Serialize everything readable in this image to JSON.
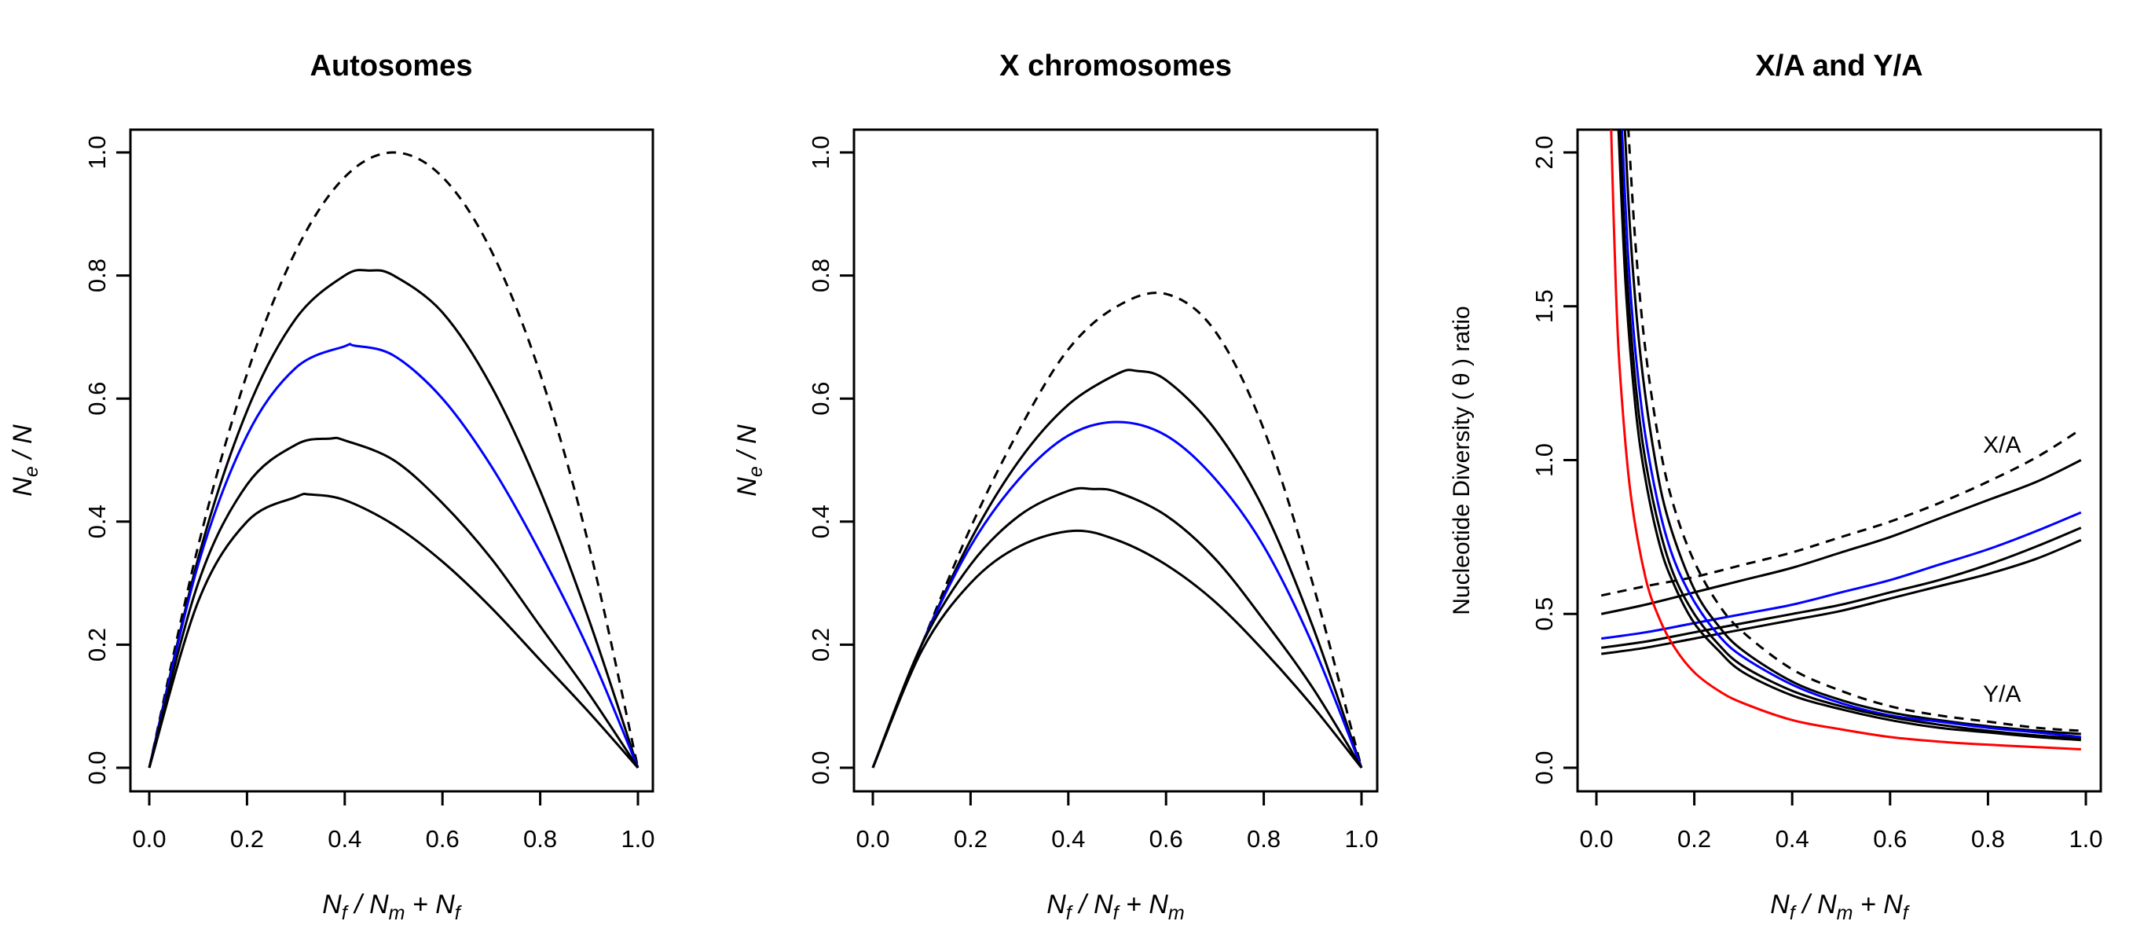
{
  "chart_data": [
    {
      "type": "line",
      "title": "Autosomes",
      "xlabel": "N_f / N_m + N_f",
      "ylabel": "N_e / N",
      "xlim": [
        0,
        1
      ],
      "ylim": [
        0,
        1
      ],
      "xticks": [
        "0.0",
        "0.2",
        "0.4",
        "0.6",
        "0.8",
        "1.0"
      ],
      "yticks": [
        "0.0",
        "0.2",
        "0.4",
        "0.6",
        "0.8",
        "1.0"
      ],
      "grid": false,
      "series": [
        {
          "color": "#000000",
          "dashed": true,
          "x": [
            0,
            0.1,
            0.2,
            0.3,
            0.4,
            0.5,
            0.6,
            0.7,
            0.8,
            0.9,
            1.0
          ],
          "y": [
            0,
            0.36,
            0.64,
            0.84,
            0.96,
            1.0,
            0.96,
            0.84,
            0.64,
            0.36,
            0
          ]
        },
        {
          "color": "#000000",
          "dashed": false,
          "x": [
            0,
            0.1,
            0.2,
            0.3,
            0.4,
            0.45,
            0.5,
            0.6,
            0.7,
            0.8,
            0.9,
            1.0
          ],
          "y": [
            0,
            0.34,
            0.58,
            0.73,
            0.8,
            0.808,
            0.8,
            0.74,
            0.62,
            0.45,
            0.24,
            0
          ]
        },
        {
          "color": "#0000ff",
          "dashed": false,
          "x": [
            0,
            0.1,
            0.2,
            0.3,
            0.4,
            0.42,
            0.5,
            0.6,
            0.7,
            0.8,
            0.9,
            1.0
          ],
          "y": [
            0,
            0.33,
            0.54,
            0.65,
            0.685,
            0.686,
            0.67,
            0.6,
            0.49,
            0.35,
            0.19,
            0
          ]
        },
        {
          "color": "#000000",
          "dashed": false,
          "x": [
            0,
            0.1,
            0.2,
            0.3,
            0.37,
            0.4,
            0.5,
            0.6,
            0.7,
            0.8,
            0.9,
            1.0
          ],
          "y": [
            0,
            0.3,
            0.46,
            0.525,
            0.535,
            0.532,
            0.5,
            0.43,
            0.34,
            0.23,
            0.12,
            0
          ]
        },
        {
          "color": "#000000",
          "dashed": false,
          "x": [
            0,
            0.1,
            0.2,
            0.3,
            0.33,
            0.4,
            0.5,
            0.6,
            0.7,
            0.8,
            0.9,
            1.0
          ],
          "y": [
            0,
            0.27,
            0.4,
            0.44,
            0.444,
            0.435,
            0.395,
            0.335,
            0.26,
            0.175,
            0.09,
            0
          ]
        }
      ]
    },
    {
      "type": "line",
      "title": "X chromosomes",
      "xlabel": "N_f / N_f + N_m",
      "ylabel": "N_e / N",
      "xlim": [
        0,
        1
      ],
      "ylim": [
        0,
        1
      ],
      "xticks": [
        "0.0",
        "0.2",
        "0.4",
        "0.6",
        "0.8",
        "1.0"
      ],
      "yticks": [
        "0.0",
        "0.2",
        "0.4",
        "0.6",
        "0.8",
        "1.0"
      ],
      "grid": false,
      "series": [
        {
          "color": "#000000",
          "dashed": true,
          "x": [
            0,
            0.1,
            0.2,
            0.3,
            0.4,
            0.5,
            0.6,
            0.7,
            0.8,
            0.9,
            1.0
          ],
          "y": [
            0,
            0.2,
            0.39,
            0.55,
            0.68,
            0.75,
            0.77,
            0.71,
            0.55,
            0.3,
            0
          ]
        },
        {
          "color": "#000000",
          "dashed": false,
          "x": [
            0,
            0.1,
            0.2,
            0.3,
            0.4,
            0.5,
            0.54,
            0.6,
            0.7,
            0.8,
            0.9,
            1.0
          ],
          "y": [
            0,
            0.2,
            0.37,
            0.5,
            0.59,
            0.64,
            0.645,
            0.63,
            0.55,
            0.42,
            0.23,
            0
          ]
        },
        {
          "color": "#0000ff",
          "dashed": false,
          "x": [
            0,
            0.1,
            0.2,
            0.3,
            0.4,
            0.5,
            0.6,
            0.7,
            0.8,
            0.9,
            1.0
          ],
          "y": [
            0,
            0.2,
            0.36,
            0.47,
            0.54,
            0.562,
            0.54,
            0.47,
            0.36,
            0.2,
            0
          ]
        },
        {
          "color": "#000000",
          "dashed": false,
          "x": [
            0,
            0.1,
            0.2,
            0.3,
            0.4,
            0.45,
            0.5,
            0.6,
            0.7,
            0.8,
            0.9,
            1.0
          ],
          "y": [
            0,
            0.2,
            0.33,
            0.41,
            0.45,
            0.453,
            0.448,
            0.41,
            0.34,
            0.24,
            0.13,
            0
          ]
        },
        {
          "color": "#000000",
          "dashed": false,
          "x": [
            0,
            0.1,
            0.2,
            0.3,
            0.41,
            0.5,
            0.6,
            0.7,
            0.8,
            0.9,
            1.0
          ],
          "y": [
            0,
            0.19,
            0.3,
            0.36,
            0.385,
            0.37,
            0.33,
            0.27,
            0.19,
            0.1,
            0
          ]
        }
      ]
    },
    {
      "type": "line",
      "title": "X/A and Y/A",
      "xlabel": "N_f / N_m + N_f",
      "ylabel": "Nucleotide Diversity ( θ ) ratio",
      "xlim": [
        0,
        1
      ],
      "ylim": [
        0,
        2
      ],
      "xticks": [
        "0.0",
        "0.2",
        "0.4",
        "0.6",
        "0.8",
        "1.0"
      ],
      "yticks": [
        "0.0",
        "0.5",
        "1.0",
        "1.5",
        "2.0"
      ],
      "grid": false,
      "annotations": [
        {
          "text": "X/A",
          "x": 0.79,
          "y": 1.05
        },
        {
          "text": "Y/A",
          "x": 0.79,
          "y": 0.24
        }
      ],
      "series": [
        {
          "color": "#000000",
          "dashed": true,
          "x": [
            0.01,
            0.1,
            0.2,
            0.3,
            0.4,
            0.5,
            0.6,
            0.7,
            0.8,
            0.9,
            0.99
          ],
          "y": [
            0.56,
            0.59,
            0.62,
            0.66,
            0.7,
            0.75,
            0.8,
            0.86,
            0.93,
            1.01,
            1.1
          ]
        },
        {
          "color": "#000000",
          "dashed": false,
          "x": [
            0.01,
            0.1,
            0.2,
            0.3,
            0.4,
            0.5,
            0.6,
            0.7,
            0.8,
            0.9,
            0.99
          ],
          "y": [
            0.5,
            0.53,
            0.57,
            0.61,
            0.65,
            0.7,
            0.75,
            0.81,
            0.87,
            0.93,
            1.0
          ]
        },
        {
          "color": "#0000ff",
          "dashed": false,
          "x": [
            0.01,
            0.1,
            0.2,
            0.3,
            0.4,
            0.5,
            0.6,
            0.7,
            0.8,
            0.9,
            0.99
          ],
          "y": [
            0.42,
            0.44,
            0.47,
            0.5,
            0.53,
            0.57,
            0.61,
            0.66,
            0.71,
            0.77,
            0.83
          ]
        },
        {
          "color": "#000000",
          "dashed": false,
          "x": [
            0.01,
            0.1,
            0.2,
            0.3,
            0.4,
            0.5,
            0.6,
            0.7,
            0.8,
            0.9,
            0.99
          ],
          "y": [
            0.39,
            0.41,
            0.44,
            0.47,
            0.5,
            0.53,
            0.57,
            0.61,
            0.66,
            0.72,
            0.78
          ]
        },
        {
          "color": "#000000",
          "dashed": false,
          "x": [
            0.01,
            0.1,
            0.2,
            0.3,
            0.4,
            0.5,
            0.6,
            0.7,
            0.8,
            0.9,
            0.99
          ],
          "y": [
            0.37,
            0.39,
            0.42,
            0.45,
            0.48,
            0.51,
            0.55,
            0.59,
            0.63,
            0.68,
            0.74
          ]
        },
        {
          "color": "#000000",
          "dashed": true,
          "x": [
            0.065,
            0.08,
            0.1,
            0.13,
            0.16,
            0.2,
            0.25,
            0.3,
            0.4,
            0.5,
            0.6,
            0.7,
            0.8,
            0.9,
            0.99
          ],
          "y": [
            2.08,
            1.7,
            1.36,
            1.04,
            0.84,
            0.67,
            0.53,
            0.44,
            0.32,
            0.25,
            0.2,
            0.17,
            0.15,
            0.13,
            0.12
          ]
        },
        {
          "color": "#000000",
          "dashed": false,
          "x": [
            0.058,
            0.07,
            0.09,
            0.12,
            0.15,
            0.2,
            0.25,
            0.3,
            0.4,
            0.5,
            0.6,
            0.7,
            0.8,
            0.9,
            0.99
          ],
          "y": [
            2.08,
            1.72,
            1.34,
            1.0,
            0.79,
            0.58,
            0.46,
            0.38,
            0.28,
            0.22,
            0.18,
            0.155,
            0.135,
            0.12,
            0.11
          ]
        },
        {
          "color": "#0000ff",
          "dashed": false,
          "x": [
            0.052,
            0.065,
            0.08,
            0.1,
            0.13,
            0.16,
            0.2,
            0.25,
            0.3,
            0.4,
            0.5,
            0.6,
            0.7,
            0.8,
            0.9,
            0.99
          ],
          "y": [
            2.08,
            1.66,
            1.35,
            1.08,
            0.83,
            0.67,
            0.54,
            0.43,
            0.36,
            0.27,
            0.21,
            0.17,
            0.15,
            0.13,
            0.115,
            0.1
          ]
        },
        {
          "color": "#000000",
          "dashed": false,
          "x": [
            0.048,
            0.06,
            0.08,
            0.1,
            0.13,
            0.16,
            0.2,
            0.25,
            0.3,
            0.4,
            0.5,
            0.6,
            0.7,
            0.8,
            0.9,
            0.99
          ],
          "y": [
            2.08,
            1.66,
            1.25,
            1.0,
            0.77,
            0.62,
            0.5,
            0.4,
            0.33,
            0.25,
            0.2,
            0.165,
            0.14,
            0.12,
            0.105,
            0.095
          ]
        },
        {
          "color": "#000000",
          "dashed": false,
          "x": [
            0.045,
            0.06,
            0.08,
            0.1,
            0.13,
            0.16,
            0.2,
            0.25,
            0.3,
            0.4,
            0.5,
            0.6,
            0.7,
            0.8,
            0.9,
            0.99
          ],
          "y": [
            2.08,
            1.56,
            1.17,
            0.94,
            0.72,
            0.59,
            0.47,
            0.38,
            0.31,
            0.235,
            0.19,
            0.155,
            0.13,
            0.115,
            0.1,
            0.09
          ]
        },
        {
          "color": "#ff0000",
          "dashed": false,
          "x": [
            0.03,
            0.04,
            0.05,
            0.07,
            0.1,
            0.13,
            0.16,
            0.2,
            0.25,
            0.3,
            0.4,
            0.5,
            0.6,
            0.7,
            0.8,
            0.9,
            0.99
          ],
          "y": [
            2.08,
            1.55,
            1.24,
            0.89,
            0.62,
            0.48,
            0.39,
            0.31,
            0.25,
            0.21,
            0.155,
            0.125,
            0.1,
            0.085,
            0.075,
            0.067,
            0.06
          ]
        }
      ]
    }
  ]
}
